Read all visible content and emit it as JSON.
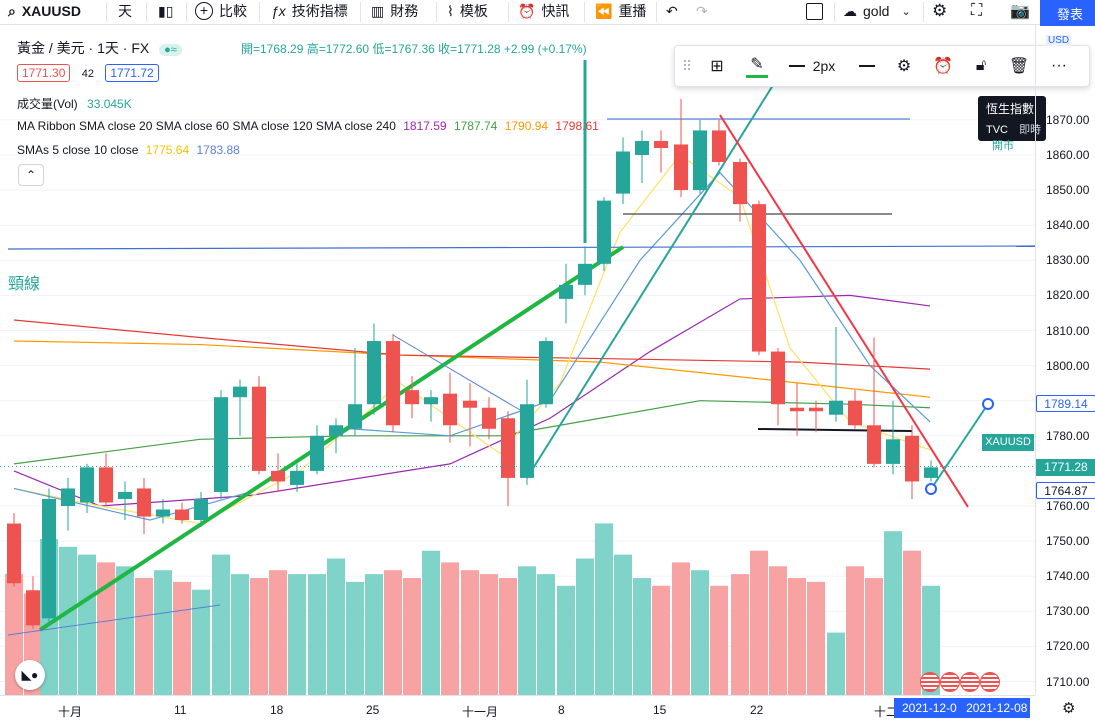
{
  "toolbar": {
    "symbol": "XAUUSD",
    "interval": "天",
    "compare": "比較",
    "indicators": "技術指標",
    "financials": "財務",
    "templates": "模板",
    "alert": "快訊",
    "replay": "重播",
    "layout_name": "gold",
    "publish": "發表"
  },
  "legend": {
    "title": "黃金 / 美元 · 1天 · FX",
    "ohlc": "開=1768.29 高=1772.60 低=1767.36 收=1771.28 +2.99 (+0.17%)",
    "sell_price": "1771.30",
    "spread": "42",
    "buy_price": "1771.72",
    "volume_label": "成交量(Vol)",
    "volume_value": "33.045K",
    "ribbon_label": "MA Ribbon SMA close 20 SMA close 60 SMA close 120 SMA close 240",
    "ribbon_values": [
      "1817.59",
      "1787.74",
      "1790.94",
      "1798.61"
    ],
    "smas_label": "SMAs 5 close 10 close",
    "smas_values": [
      "1775.64",
      "1783.88"
    ]
  },
  "neckline_text": "頸線",
  "drawbar": {
    "width_label": "2px"
  },
  "tooltip": {
    "title": "恆生指數",
    "source": "TVC",
    "realtime": "即時",
    "status": "開市"
  },
  "price_axis": {
    "currency": "USD",
    "ticks": [
      "1870.00",
      "1860.00",
      "1850.00",
      "1840.00",
      "1830.00",
      "1820.00",
      "1810.00",
      "1800.00",
      "1790.00",
      "1780.00",
      "1770.00",
      "1760.00",
      "1750.00",
      "1740.00",
      "1730.00",
      "1720.00",
      "1710.00"
    ],
    "tag_blue": "1789.14",
    "tag_symbol": "XAUUSD",
    "tag_current": "1771.28",
    "tag_low": "1764.87"
  },
  "time_axis": {
    "ticks": [
      "十月",
      "11",
      "18",
      "25",
      "十一月",
      "8",
      "15",
      "22",
      "十二"
    ],
    "range_start": "2021-12-0",
    "range_end": "2021-12-08"
  },
  "colors": {
    "up": "#26a69a",
    "down": "#ef5350",
    "vol_up": "#7fd3c8",
    "vol_down": "#f7a3a3",
    "green_trend": "#1fb741",
    "red_trend": "#f23645",
    "accent": "#2962ff"
  },
  "chart_data": {
    "type": "candlestick",
    "candles": [
      {
        "o": 1755,
        "h": 1758,
        "l": 1737,
        "c": 1738
      },
      {
        "o": 1736,
        "h": 1740,
        "l": 1725,
        "c": 1726
      },
      {
        "o": 1728,
        "h": 1765,
        "l": 1726,
        "c": 1762
      },
      {
        "o": 1760,
        "h": 1768,
        "l": 1753,
        "c": 1765
      },
      {
        "o": 1761,
        "h": 1772,
        "l": 1758,
        "c": 1771
      },
      {
        "o": 1771,
        "h": 1775,
        "l": 1760,
        "c": 1761
      },
      {
        "o": 1762,
        "h": 1767,
        "l": 1756,
        "c": 1764
      },
      {
        "o": 1765,
        "h": 1768,
        "l": 1752,
        "c": 1757
      },
      {
        "o": 1757,
        "h": 1762,
        "l": 1755,
        "c": 1759
      },
      {
        "o": 1759,
        "h": 1761,
        "l": 1755,
        "c": 1756
      },
      {
        "o": 1756,
        "h": 1764,
        "l": 1754,
        "c": 1762
      },
      {
        "o": 1764,
        "h": 1793,
        "l": 1762,
        "c": 1791
      },
      {
        "o": 1791,
        "h": 1796,
        "l": 1780,
        "c": 1794
      },
      {
        "o": 1794,
        "h": 1797,
        "l": 1769,
        "c": 1770
      },
      {
        "o": 1770,
        "h": 1775,
        "l": 1764,
        "c": 1767
      },
      {
        "o": 1766,
        "h": 1772,
        "l": 1764,
        "c": 1770
      },
      {
        "o": 1770,
        "h": 1783,
        "l": 1769,
        "c": 1780
      },
      {
        "o": 1780,
        "h": 1785,
        "l": 1775,
        "c": 1783
      },
      {
        "o": 1782,
        "h": 1805,
        "l": 1780,
        "c": 1789
      },
      {
        "o": 1789,
        "h": 1812,
        "l": 1786,
        "c": 1807
      },
      {
        "o": 1807,
        "h": 1809,
        "l": 1781,
        "c": 1783
      },
      {
        "o": 1793,
        "h": 1797,
        "l": 1785,
        "c": 1789
      },
      {
        "o": 1789,
        "h": 1793,
        "l": 1784,
        "c": 1791
      },
      {
        "o": 1792,
        "h": 1798,
        "l": 1778,
        "c": 1783
      },
      {
        "o": 1790,
        "h": 1795,
        "l": 1777,
        "c": 1788
      },
      {
        "o": 1788,
        "h": 1791,
        "l": 1779,
        "c": 1782
      },
      {
        "o": 1785,
        "h": 1787,
        "l": 1760,
        "c": 1768
      },
      {
        "o": 1768,
        "h": 1796,
        "l": 1766,
        "c": 1789
      },
      {
        "o": 1789,
        "h": 1808,
        "l": 1788,
        "c": 1807
      },
      {
        "o": 1819,
        "h": 1829,
        "l": 1812,
        "c": 1823
      },
      {
        "o": 1823,
        "h": 1834,
        "l": 1820,
        "c": 1829
      },
      {
        "o": 1829,
        "h": 1848,
        "l": 1827,
        "c": 1847
      },
      {
        "o": 1849,
        "h": 1865,
        "l": 1846,
        "c": 1861
      },
      {
        "o": 1860,
        "h": 1867,
        "l": 1852,
        "c": 1864
      },
      {
        "o": 1864,
        "h": 1867,
        "l": 1855,
        "c": 1862
      },
      {
        "o": 1863,
        "h": 1876,
        "l": 1848,
        "c": 1850
      },
      {
        "o": 1850,
        "h": 1870,
        "l": 1849,
        "c": 1867
      },
      {
        "o": 1867,
        "h": 1870,
        "l": 1857,
        "c": 1858
      },
      {
        "o": 1858,
        "h": 1859,
        "l": 1841,
        "c": 1846
      },
      {
        "o": 1846,
        "h": 1847,
        "l": 1803,
        "c": 1804
      },
      {
        "o": 1804,
        "h": 1805,
        "l": 1783,
        "c": 1789
      },
      {
        "o": 1788,
        "h": 1795,
        "l": 1780,
        "c": 1787
      },
      {
        "o": 1788,
        "h": 1790,
        "l": 1781,
        "c": 1787
      },
      {
        "o": 1786,
        "h": 1811,
        "l": 1784,
        "c": 1790
      },
      {
        "o": 1790,
        "h": 1793,
        "l": 1782,
        "c": 1783
      },
      {
        "o": 1783,
        "h": 1808,
        "l": 1771,
        "c": 1772
      },
      {
        "o": 1772,
        "h": 1790,
        "l": 1769,
        "c": 1779
      },
      {
        "o": 1780,
        "h": 1783,
        "l": 1762,
        "c": 1767
      },
      {
        "o": 1768,
        "h": 1773,
        "l": 1767,
        "c": 1771
      }
    ],
    "volume": [
      31,
      26,
      40,
      38,
      36,
      34,
      33,
      30,
      32,
      29,
      27,
      36,
      31,
      30,
      32,
      31,
      31,
      35,
      29,
      31,
      32,
      30,
      37,
      34,
      32,
      31,
      30,
      33,
      31,
      28,
      35,
      44,
      36,
      30,
      28,
      34,
      32,
      28,
      31,
      37,
      33,
      30,
      29,
      16,
      33,
      30,
      42,
      37,
      28
    ],
    "candle_x": [
      14,
      33,
      49,
      68,
      87,
      106,
      125,
      144,
      163,
      182,
      201,
      221,
      240,
      259,
      278,
      297,
      317,
      336,
      355,
      374,
      393,
      412,
      431,
      450,
      470,
      489,
      508,
      527,
      546,
      566,
      585,
      604,
      623,
      642,
      661,
      681,
      700,
      719,
      740,
      759,
      778,
      797,
      816,
      836,
      855,
      874,
      893,
      912,
      931
    ],
    "ma_lines": [
      {
        "name": "SMA 20",
        "color": "#9c27b0",
        "points": [
          [
            14,
            1770
          ],
          [
            100,
            1760
          ],
          [
            250,
            1763
          ],
          [
            450,
            1772
          ],
          [
            550,
            1785
          ],
          [
            650,
            1804
          ],
          [
            740,
            1819
          ],
          [
            850,
            1820
          ],
          [
            930,
            1817
          ]
        ]
      },
      {
        "name": "SMA 60",
        "color": "#43a047",
        "points": [
          [
            14,
            1772
          ],
          [
            200,
            1779
          ],
          [
            350,
            1780
          ],
          [
            500,
            1780
          ],
          [
            600,
            1785
          ],
          [
            700,
            1790
          ],
          [
            850,
            1789
          ],
          [
            930,
            1788
          ]
        ]
      },
      {
        "name": "SMA 120",
        "color": "#ff9800",
        "points": [
          [
            14,
            1807
          ],
          [
            200,
            1806
          ],
          [
            400,
            1803
          ],
          [
            600,
            1801
          ],
          [
            800,
            1795
          ],
          [
            930,
            1791
          ]
        ]
      },
      {
        "name": "SMA 240",
        "color": "#e53935",
        "points": [
          [
            14,
            1813
          ],
          [
            200,
            1808
          ],
          [
            400,
            1803
          ],
          [
            600,
            1802
          ],
          [
            800,
            1801
          ],
          [
            930,
            1799
          ]
        ]
      },
      {
        "name": "SMA 5",
        "color": "#ffe066",
        "points": [
          [
            14,
            1765
          ],
          [
            100,
            1760
          ],
          [
            200,
            1755
          ],
          [
            300,
            1770
          ],
          [
            400,
            1795
          ],
          [
            500,
            1775
          ],
          [
            560,
            1795
          ],
          [
            620,
            1838
          ],
          [
            680,
            1860
          ],
          [
            740,
            1848
          ],
          [
            790,
            1805
          ],
          [
            850,
            1784
          ],
          [
            930,
            1776
          ]
        ]
      },
      {
        "name": "SMA 10",
        "color": "#5b9bd5",
        "points": [
          [
            14,
            1765
          ],
          [
            150,
            1756
          ],
          [
            250,
            1764
          ],
          [
            350,
            1782
          ],
          [
            450,
            1780
          ],
          [
            550,
            1790
          ],
          [
            640,
            1830
          ],
          [
            720,
            1855
          ],
          [
            800,
            1830
          ],
          [
            870,
            1800
          ],
          [
            930,
            1784
          ]
        ]
      }
    ]
  }
}
